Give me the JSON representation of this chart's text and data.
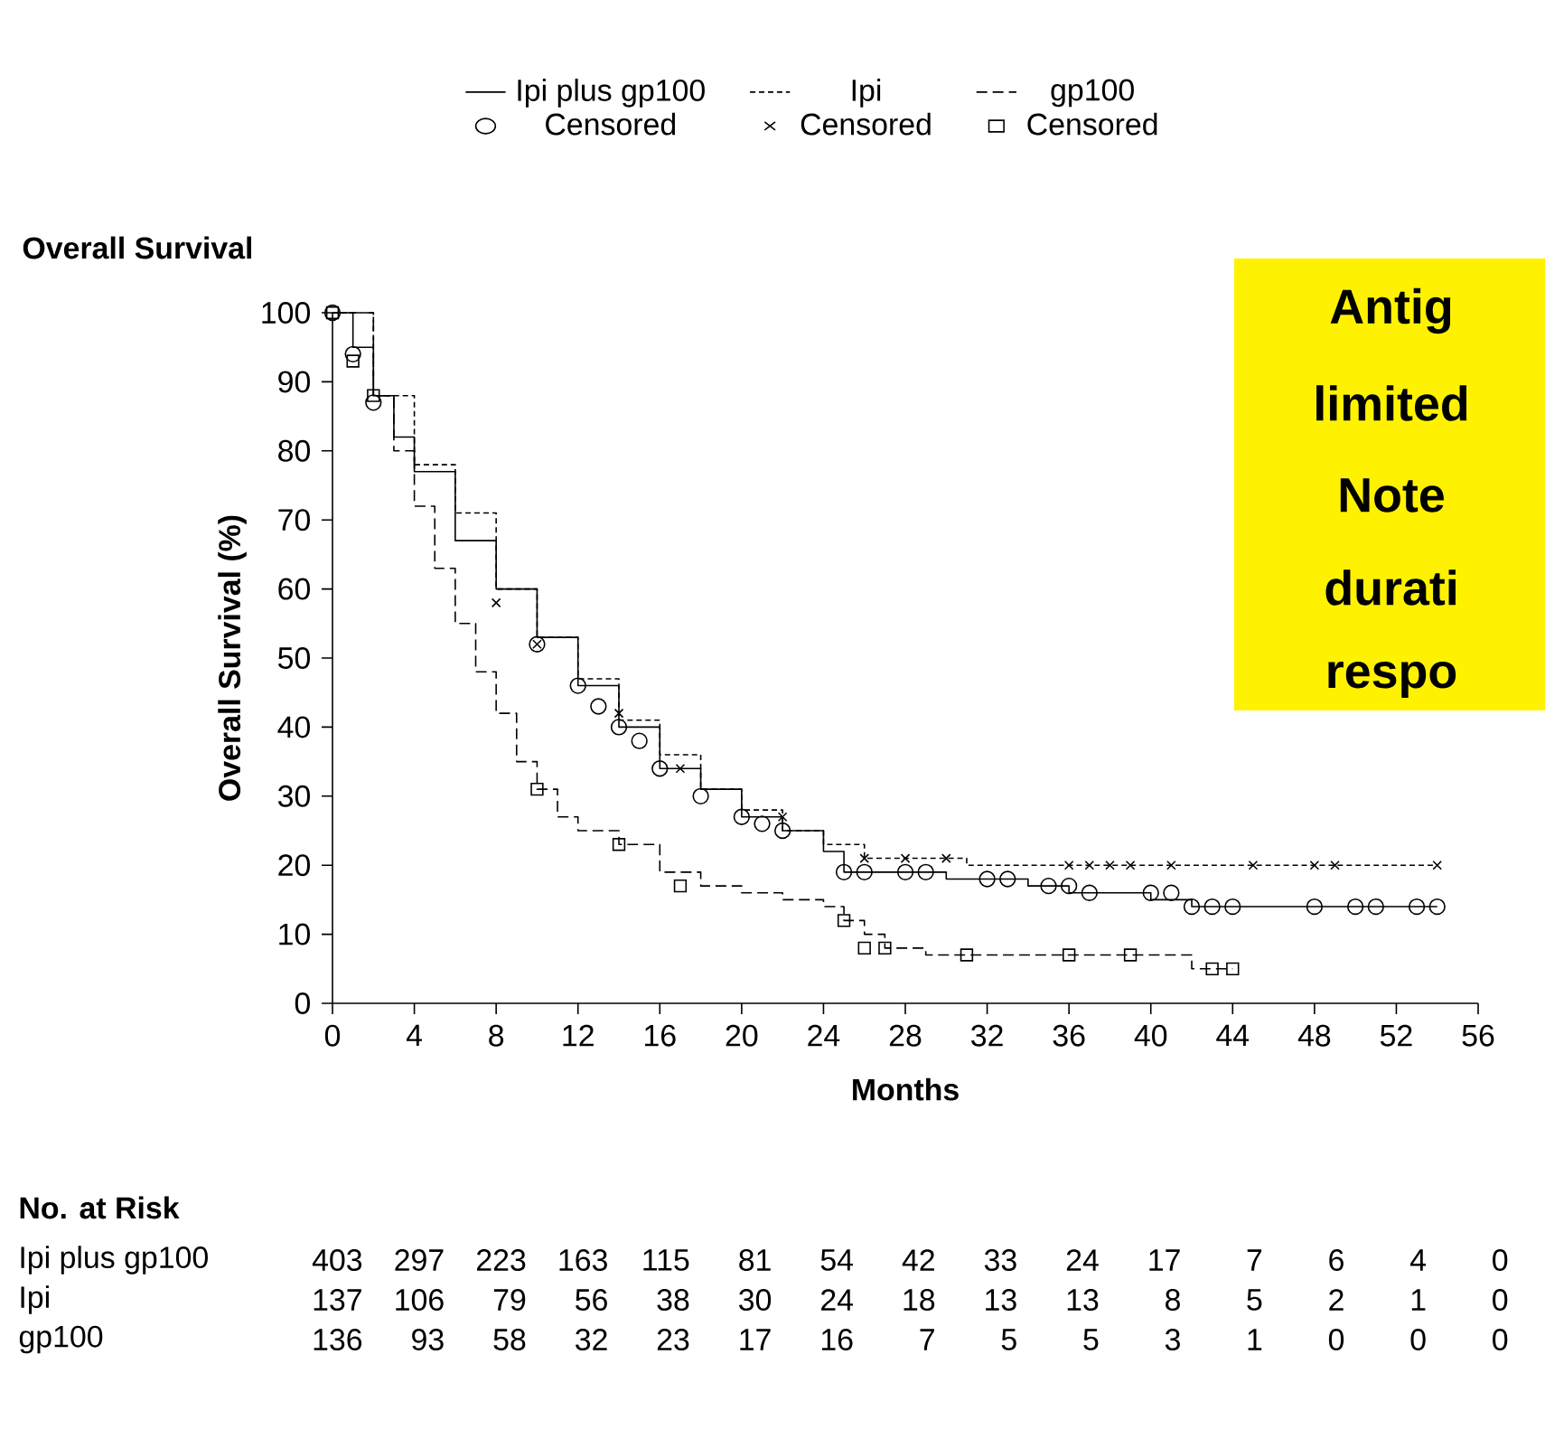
{
  "chart_data": {
    "type": "step",
    "title": "Overall Survival",
    "xlabel": "Months",
    "ylabel": "Overall Survival (%)",
    "xlim": [
      0,
      56
    ],
    "ylim": [
      0,
      100
    ],
    "xticks": [
      0,
      4,
      8,
      12,
      16,
      20,
      24,
      28,
      32,
      36,
      40,
      44,
      48,
      52,
      56
    ],
    "yticks": [
      0,
      10,
      20,
      30,
      40,
      50,
      60,
      70,
      80,
      90,
      100
    ],
    "legend": "top",
    "series": [
      {
        "name": "Ipi plus gp100",
        "line_style": "solid",
        "color": "#000000",
        "x": [
          0,
          1,
          2,
          3,
          4,
          6,
          8,
          10,
          12,
          14,
          16,
          18,
          20,
          22,
          24,
          25,
          28,
          30,
          34,
          36,
          40,
          42,
          44,
          54
        ],
        "values": [
          100,
          95,
          88,
          82,
          77,
          67,
          60,
          53,
          46,
          40,
          34,
          31,
          27,
          25,
          22,
          19,
          19,
          18,
          17,
          16,
          15,
          14,
          14,
          14
        ]
      },
      {
        "name": "Ipi",
        "line_style": "dotted",
        "color": "#000000",
        "x": [
          0,
          2,
          4,
          6,
          8,
          10,
          12,
          14,
          16,
          18,
          20,
          22,
          24,
          26,
          28,
          31,
          54
        ],
        "values": [
          100,
          88,
          78,
          71,
          60,
          53,
          47,
          41,
          36,
          31,
          28,
          25,
          23,
          21,
          21,
          20,
          20
        ]
      },
      {
        "name": "gp100",
        "line_style": "dashed",
        "color": "#000000",
        "x": [
          0,
          2,
          3,
          4,
          5,
          6,
          7,
          8,
          9,
          10,
          11,
          12,
          14,
          16,
          18,
          20,
          22,
          24,
          25,
          26,
          27,
          28,
          29,
          36,
          40,
          42,
          44
        ],
        "values": [
          100,
          88,
          80,
          72,
          63,
          55,
          48,
          42,
          35,
          31,
          27,
          25,
          23,
          19,
          17,
          16,
          15,
          14,
          12,
          10,
          8,
          8,
          7,
          7,
          7,
          5,
          5
        ]
      },
      {
        "name": "Censored",
        "type": "scatter",
        "marker": "circle",
        "color": "#000000",
        "x": [
          0,
          1,
          2,
          10,
          12,
          13,
          14,
          15,
          16,
          18,
          20,
          21,
          22,
          25,
          26,
          28,
          29,
          32,
          33,
          35,
          36,
          37,
          40,
          41,
          42,
          43,
          44,
          48,
          50,
          51,
          53,
          54
        ],
        "values": [
          100,
          94,
          87,
          52,
          46,
          43,
          40,
          38,
          34,
          30,
          27,
          26,
          25,
          19,
          19,
          19,
          19,
          18,
          18,
          17,
          17,
          16,
          16,
          16,
          14,
          14,
          14,
          14,
          14,
          14,
          14,
          14
        ]
      },
      {
        "name": "Censored",
        "type": "scatter",
        "marker": "cross",
        "color": "#000000",
        "x": [
          8,
          10,
          14,
          17,
          22,
          26,
          28,
          30,
          36,
          37,
          38,
          39,
          41,
          45,
          48,
          49,
          54
        ],
        "values": [
          58,
          52,
          42,
          34,
          27,
          21,
          21,
          21,
          20,
          20,
          20,
          20,
          20,
          20,
          20,
          20,
          20
        ]
      },
      {
        "name": "Censored",
        "type": "scatter",
        "marker": "square",
        "color": "#000000",
        "x": [
          0,
          1,
          2,
          10,
          14,
          17,
          25,
          26,
          27,
          31,
          36,
          39,
          43,
          44
        ],
        "values": [
          100,
          93,
          88,
          31,
          23,
          17,
          12,
          8,
          8,
          7,
          7,
          7,
          5,
          5
        ]
      }
    ],
    "annotations": [
      "No. at Risk",
      "403",
      "297",
      "223",
      "163",
      "115",
      "81",
      "54",
      "42",
      "33",
      "24",
      "17",
      "7",
      "6",
      "4",
      "0",
      "137",
      "106",
      "79",
      "56",
      "38",
      "30",
      "24",
      "18",
      "13",
      "13",
      "8",
      "5",
      "2",
      "1",
      "0",
      "136",
      "93",
      "58",
      "32",
      "23",
      "17",
      "16",
      "7",
      "5",
      "5",
      "3",
      "1",
      "0",
      "0",
      "0",
      "Antig",
      "limited",
      "Note",
      "durati",
      "respo"
    ]
  }
}
